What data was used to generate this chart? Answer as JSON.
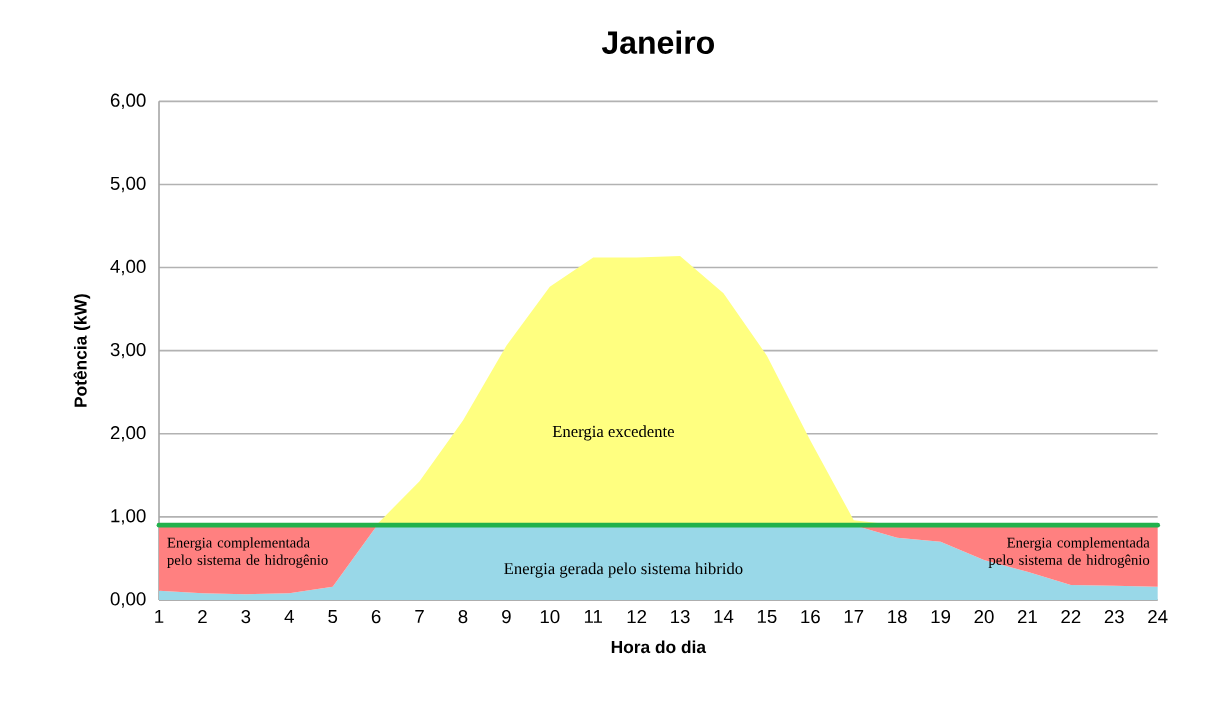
{
  "chart_data": {
    "type": "area",
    "title": "Janeiro",
    "xlabel": "Hora do dia",
    "ylabel": "Potência (kW)",
    "x": [
      1,
      2,
      3,
      4,
      5,
      6,
      7,
      8,
      9,
      10,
      11,
      12,
      13,
      14,
      15,
      16,
      17,
      18,
      19,
      20,
      21,
      22,
      23,
      24
    ],
    "xlim": [
      1,
      24
    ],
    "xticks": [
      1,
      2,
      3,
      4,
      5,
      6,
      7,
      8,
      9,
      10,
      11,
      12,
      13,
      14,
      15,
      16,
      17,
      18,
      19,
      20,
      21,
      22,
      23,
      24
    ],
    "ylim": [
      0,
      6
    ],
    "yticks": [
      {
        "value": 0,
        "label": "0,00"
      },
      {
        "value": 1,
        "label": "1,00"
      },
      {
        "value": 2,
        "label": "2,00"
      },
      {
        "value": 3,
        "label": "3,00"
      },
      {
        "value": 4,
        "label": "4,00"
      },
      {
        "value": 5,
        "label": "5,00"
      },
      {
        "value": 6,
        "label": "6,00"
      }
    ],
    "grid": "y",
    "stacked": true,
    "series": [
      {
        "color": "#99d8e8",
        "values": [
          0.11,
          0.08,
          0.07,
          0.08,
          0.16,
          0.88,
          0.9,
          0.9,
          0.9,
          0.9,
          0.9,
          0.9,
          0.9,
          0.9,
          0.9,
          0.9,
          0.9,
          0.75,
          0.7,
          0.48,
          0.34,
          0.18,
          0.17,
          0.16
        ]
      },
      {
        "color": "#ff8080",
        "values": [
          0.79,
          0.82,
          0.83,
          0.82,
          0.74,
          0.02,
          0,
          0,
          0,
          0,
          0,
          0,
          0,
          0,
          0,
          0,
          0,
          0.15,
          0.2,
          0.42,
          0.56,
          0.72,
          0.73,
          0.74
        ]
      },
      {
        "color": "#ffff80",
        "values": [
          0,
          0,
          0,
          0,
          0,
          0,
          0.53,
          1.26,
          2.16,
          2.87,
          3.22,
          3.22,
          3.24,
          2.79,
          2.04,
          1.02,
          0.06,
          0,
          0,
          0,
          0,
          0,
          0,
          0
        ]
      },
      {
        "type": "line",
        "color": "#22b14c",
        "values": [
          0.9,
          0.9,
          0.9,
          0.9,
          0.9,
          0.9,
          0.9,
          0.9,
          0.9,
          0.9,
          0.9,
          0.9,
          0.9,
          0.9,
          0.9,
          0.9,
          0.9,
          0.9,
          0.9,
          0.9,
          0.9,
          0.9,
          0.9,
          0.9
        ]
      }
    ],
    "annotations": [
      "Energia excedente",
      "Energia gerada pelo sistema hibrido",
      "Energia complementada pelo sistema de hidrogênio",
      "Energia complementada pelo sistema de hidrogênio"
    ]
  }
}
